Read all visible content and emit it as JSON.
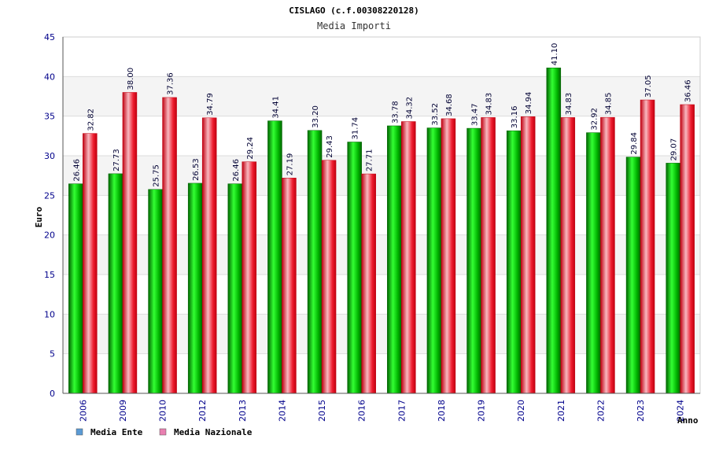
{
  "chart_data": {
    "type": "bar",
    "title": "CISLAGO (c.f.00308220128)",
    "subtitle": "Media Importi",
    "ylabel": "Euro",
    "xlabel": "Anno",
    "ylim": [
      0,
      45
    ],
    "yticks": [
      0,
      5,
      10,
      15,
      20,
      25,
      30,
      35,
      40,
      45
    ],
    "categories": [
      "2006",
      "2009",
      "2010",
      "2012",
      "2013",
      "2014",
      "2015",
      "2016",
      "2017",
      "2018",
      "2019",
      "2020",
      "2021",
      "2022",
      "2023",
      "2024"
    ],
    "series": [
      {
        "name": "Media Ente",
        "values": [
          26.46,
          27.73,
          25.75,
          26.53,
          26.46,
          34.41,
          33.2,
          31.74,
          33.78,
          33.52,
          33.47,
          33.16,
          41.1,
          32.92,
          29.84,
          29.07
        ]
      },
      {
        "name": "Media Nazionale",
        "values": [
          32.82,
          38.0,
          37.36,
          34.79,
          29.24,
          27.19,
          29.43,
          27.71,
          34.32,
          34.68,
          34.83,
          34.94,
          34.83,
          34.85,
          37.05,
          36.46
        ]
      }
    ],
    "value_labels": [
      [
        "26.46",
        "27.73",
        "25.75",
        "26.53",
        "26.46",
        "34.41",
        "33.20",
        "31.74",
        "33.78",
        "33.52",
        "33.47",
        "33.16",
        "41.10",
        "32.92",
        "29.84",
        "29.07"
      ],
      [
        "32.82",
        "38.00",
        "37.36",
        "34.79",
        "29.24",
        "27.19",
        "29.43",
        "27.71",
        "34.32",
        "34.68",
        "34.83",
        "34.94",
        "34.83",
        "34.85",
        "37.05",
        "36.46"
      ]
    ],
    "legend": [
      {
        "label": "Media Ente",
        "swatch": "#5b9bd5"
      },
      {
        "label": "Media Nazionale",
        "swatch": "#e87fb0"
      }
    ],
    "colors": {
      "ente": "#00b400",
      "ente_dark": "#006400",
      "ente_light": "#33ff33",
      "naz": "#ee1c2e",
      "naz_dark": "#c00010",
      "naz_light": "#f8b8c0",
      "band": "#f4f4f4",
      "grid": "#dddddd"
    }
  }
}
